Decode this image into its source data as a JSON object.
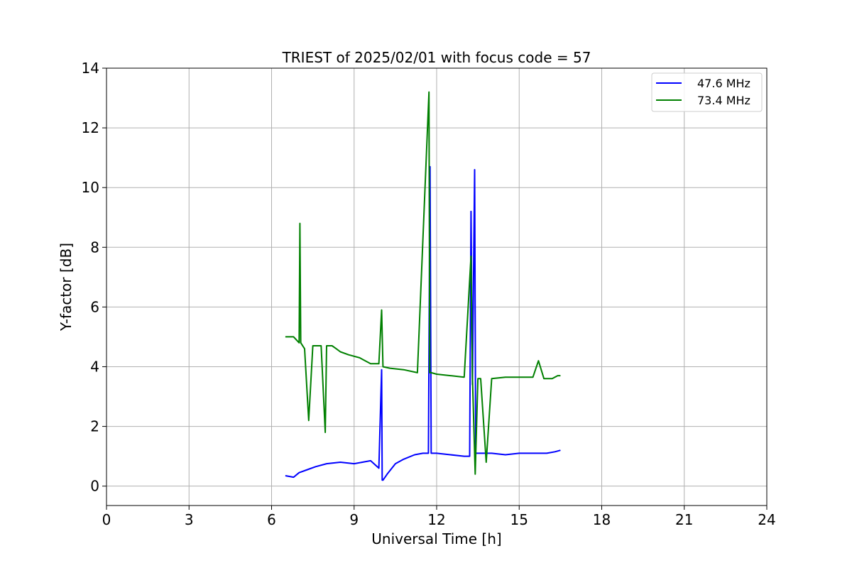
{
  "chart_data": {
    "type": "line",
    "title": "TRIEST of 2025/02/01 with focus code = 57",
    "xlabel": "Universal Time [h]",
    "ylabel": "Y-factor [dB]",
    "xlim": [
      0,
      24
    ],
    "ylim": [
      -0.65,
      14
    ],
    "xticks": [
      0,
      3,
      6,
      9,
      12,
      15,
      18,
      21,
      24
    ],
    "yticks": [
      0,
      2,
      4,
      6,
      8,
      10,
      12,
      14
    ],
    "grid": true,
    "legend_position": "upper-right",
    "series": [
      {
        "name": "47.6 MHz",
        "color": "#0000ff",
        "x": [
          6.5,
          6.8,
          7.0,
          7.3,
          7.6,
          8.0,
          8.5,
          9.0,
          9.3,
          9.6,
          9.9,
          10.0,
          10.02,
          10.05,
          10.2,
          10.5,
          10.8,
          11.2,
          11.5,
          11.7,
          11.76,
          11.8,
          12.0,
          12.5,
          13.0,
          13.2,
          13.25,
          13.3,
          13.38,
          13.42,
          13.6,
          14.0,
          14.5,
          15.0,
          15.5,
          16.0,
          16.3,
          16.5
        ],
        "y": [
          0.35,
          0.3,
          0.45,
          0.55,
          0.65,
          0.75,
          0.8,
          0.75,
          0.8,
          0.85,
          0.6,
          3.9,
          0.2,
          0.2,
          0.4,
          0.75,
          0.9,
          1.05,
          1.1,
          1.1,
          10.7,
          1.1,
          1.1,
          1.05,
          1.0,
          1.0,
          9.2,
          3.4,
          10.6,
          1.1,
          1.1,
          1.1,
          1.05,
          1.1,
          1.1,
          1.1,
          1.15,
          1.2
        ]
      },
      {
        "name": "73.4 MHz",
        "color": "#008000",
        "x": [
          6.5,
          6.8,
          7.0,
          7.03,
          7.06,
          7.2,
          7.35,
          7.5,
          7.6,
          7.8,
          7.95,
          8.0,
          8.2,
          8.35,
          8.5,
          8.8,
          9.2,
          9.6,
          9.9,
          10.0,
          10.05,
          10.3,
          10.8,
          11.3,
          11.72,
          11.75,
          11.8,
          12.0,
          12.5,
          13.0,
          13.25,
          13.3,
          13.4,
          13.5,
          13.6,
          13.8,
          14.0,
          14.5,
          15.0,
          15.5,
          15.7,
          15.9,
          16.2,
          16.4,
          16.5
        ],
        "y": [
          5.0,
          5.0,
          4.8,
          8.8,
          4.8,
          4.6,
          2.2,
          4.7,
          4.7,
          4.7,
          1.8,
          4.7,
          4.7,
          4.6,
          4.5,
          4.4,
          4.3,
          4.1,
          4.1,
          5.9,
          4.0,
          3.95,
          3.9,
          3.8,
          13.2,
          3.8,
          3.8,
          3.75,
          3.7,
          3.65,
          7.7,
          3.65,
          0.4,
          3.6,
          3.6,
          0.8,
          3.6,
          3.65,
          3.65,
          3.65,
          4.2,
          3.6,
          3.6,
          3.7,
          3.7
        ]
      }
    ]
  }
}
